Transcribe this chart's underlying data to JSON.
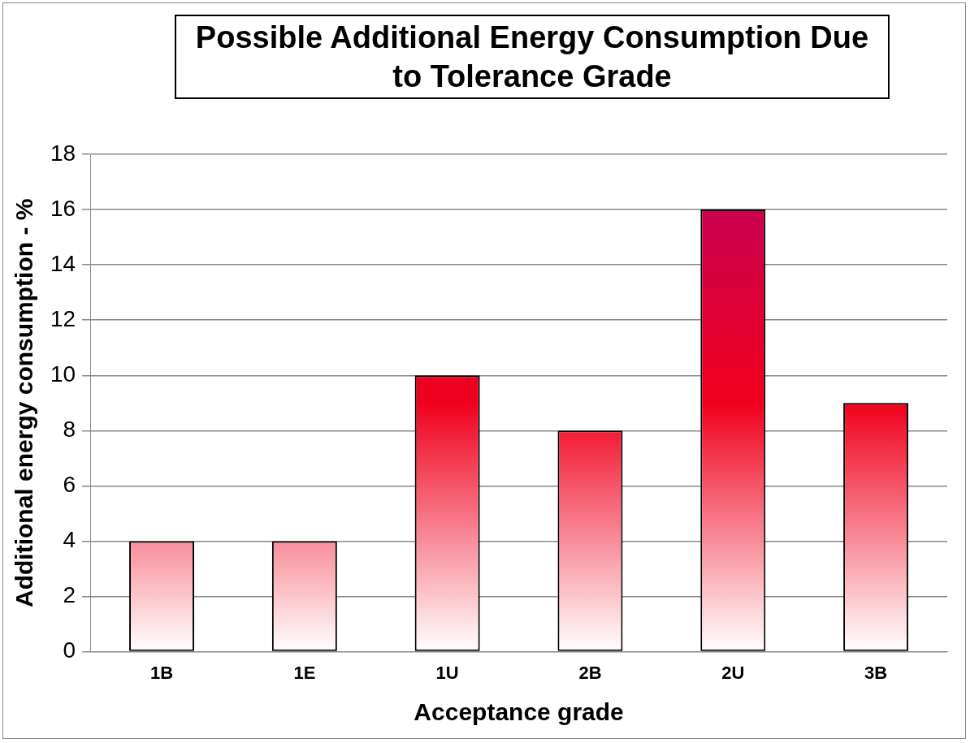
{
  "chart_data": {
    "type": "bar",
    "title": "Possible Additional Energy Consumption Due to Tolerance Grade",
    "xlabel": "Acceptance grade",
    "ylabel": "Additional energy consumption - %",
    "categories": [
      "1B",
      "1E",
      "1U",
      "2B",
      "2U",
      "3B"
    ],
    "values": [
      4,
      4,
      10,
      8,
      16,
      9
    ],
    "color": "#f0001c",
    "ylim": [
      0,
      18
    ],
    "yticks": [
      0,
      2,
      4,
      6,
      8,
      10,
      12,
      14,
      16,
      18
    ],
    "grid": "y",
    "legend": false
  }
}
